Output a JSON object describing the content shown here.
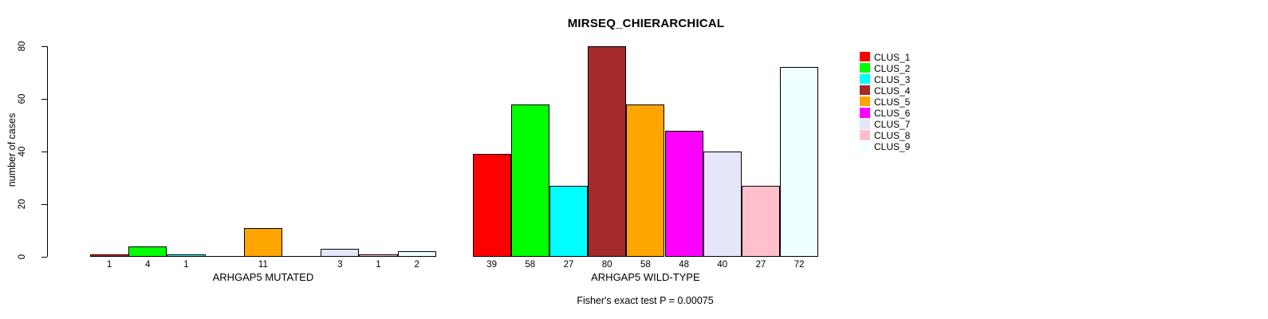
{
  "chart_data": {
    "type": "bar",
    "title": "MIRSEQ_CHIERARCHICAL",
    "ylabel": "number of cases",
    "xlabel": "",
    "ylim": [
      0,
      80
    ],
    "yticks": [
      0,
      20,
      40,
      60,
      80
    ],
    "grid": false,
    "legend_position": "topright",
    "categories": [
      "CLUS_1",
      "CLUS_2",
      "CLUS_3",
      "CLUS_4",
      "CLUS_5",
      "CLUS_6",
      "CLUS_7",
      "CLUS_8",
      "CLUS_9"
    ],
    "colors": [
      "#FF0000",
      "#00FF00",
      "#00FFFF",
      "#A52A2A",
      "#FFA500",
      "#FF00FF",
      "#E6E6FA",
      "#FFC0CB",
      "#F0FFFF"
    ],
    "series": [
      {
        "name": "ARHGAP5 MUTATED",
        "values": [
          1,
          4,
          1,
          0,
          11,
          0,
          3,
          1,
          2
        ]
      },
      {
        "name": "ARHGAP5 WILD-TYPE",
        "values": [
          39,
          58,
          27,
          80,
          58,
          48,
          40,
          27,
          72
        ]
      }
    ],
    "bar_value_labels_shown_for_nonzero_only": true,
    "annotation": "Fisher's exact test P = 0.00075"
  }
}
